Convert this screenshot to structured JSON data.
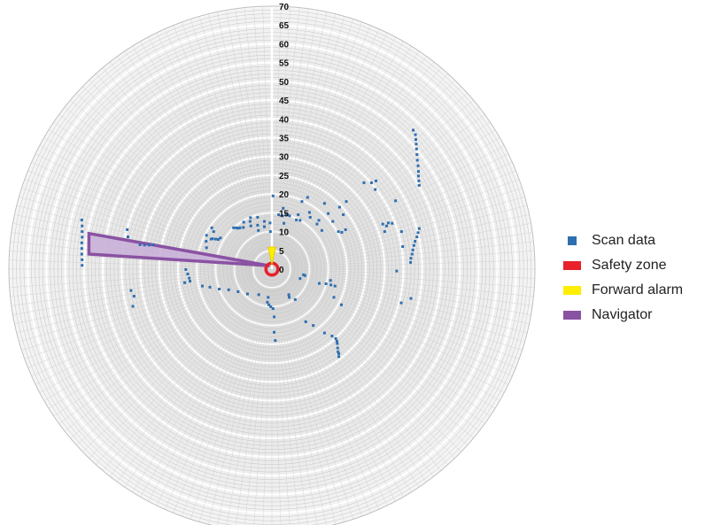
{
  "chart_data": {
    "type": "scatter",
    "coordinate_system": "polar",
    "title": "",
    "radial_ticks": [
      "0",
      "5",
      "10",
      "15",
      "20",
      "25",
      "30",
      "35",
      "40",
      "45",
      "50",
      "55",
      "60",
      "65",
      "70"
    ],
    "radial_range": [
      0,
      70
    ],
    "grid": true,
    "legend_position": "right",
    "series": [
      {
        "name": "Scan data",
        "kind": "points",
        "color": "#2f6fb0",
        "points": [
          [
            -50.6,
            13.1
          ],
          [
            -50.5,
            11.5
          ],
          [
            -50.5,
            10.0
          ],
          [
            -50.5,
            8.5
          ],
          [
            -50.6,
            7.0
          ],
          [
            -50.6,
            5.5
          ],
          [
            -50.6,
            4.0
          ],
          [
            -50.5,
            2.5
          ],
          [
            -50.5,
            1.0
          ],
          [
            -38.5,
            10.5
          ],
          [
            -38.3,
            8.6
          ],
          [
            -35.1,
            6.5
          ],
          [
            -33.9,
            6.4
          ],
          [
            -32.7,
            6.4
          ],
          [
            -31.6,
            6.5
          ],
          [
            -37.5,
            -5.7
          ],
          [
            -36.7,
            -7.2
          ],
          [
            -37.0,
            -9.9
          ],
          [
            -22.9,
            -0.1
          ],
          [
            -22.4,
            -1.3
          ],
          [
            -22.0,
            -2.4
          ],
          [
            -21.8,
            -3.2
          ],
          [
            -23.2,
            -3.6
          ],
          [
            -17.4,
            5.7
          ],
          [
            -17.5,
            7.4
          ],
          [
            -17.4,
            9.0
          ],
          [
            -16.2,
            8.0
          ],
          [
            -15.8,
            8.1
          ],
          [
            -15.0,
            8.0
          ],
          [
            -14.3,
            7.9
          ],
          [
            -13.7,
            8.3
          ],
          [
            -15.5,
            10.0
          ],
          [
            -16.0,
            11.0
          ],
          [
            -10.2,
            11.0
          ],
          [
            -9.5,
            11.0
          ],
          [
            -9.0,
            10.9
          ],
          [
            -8.5,
            11.0
          ],
          [
            -7.5,
            12.5
          ],
          [
            -7.6,
            11.1
          ],
          [
            -5.7,
            13.7
          ],
          [
            -5.8,
            12.7
          ],
          [
            -5.6,
            11.5
          ],
          [
            -3.8,
            13.8
          ],
          [
            -3.8,
            11.7
          ],
          [
            -3.6,
            10.3
          ],
          [
            -2.0,
            12.7
          ],
          [
            -2.0,
            11.3
          ],
          [
            -0.5,
            12.3
          ],
          [
            -0.4,
            10.0
          ],
          [
            0.3,
            19.5
          ],
          [
            1.8,
            14.5
          ],
          [
            2.8,
            14.2
          ],
          [
            3.8,
            14.5
          ],
          [
            4.7,
            14.2
          ],
          [
            3.0,
            16.2
          ],
          [
            3.2,
            12.2
          ],
          [
            6.5,
            13.1
          ],
          [
            7.0,
            14.5
          ],
          [
            7.5,
            13.0
          ],
          [
            8.0,
            18.0
          ],
          [
            9.5,
            19.1
          ],
          [
            10.0,
            15.1
          ],
          [
            10.2,
            13.8
          ],
          [
            12.0,
            12.0
          ],
          [
            12.5,
            13.0
          ],
          [
            14.0,
            17.5
          ],
          [
            15.0,
            14.8
          ],
          [
            16.2,
            12.7
          ],
          [
            13.3,
            10.3
          ],
          [
            18.0,
            16.5
          ],
          [
            19.0,
            14.5
          ],
          [
            19.8,
            18.0
          ],
          [
            17.7,
            10.0
          ],
          [
            18.6,
            9.8
          ],
          [
            19.6,
            10.5
          ],
          [
            -18.5,
            -4.5
          ],
          [
            -16.5,
            -4.8
          ],
          [
            -14.0,
            -5.3
          ],
          [
            -11.5,
            -5.5
          ],
          [
            -9.0,
            -6.0
          ],
          [
            -6.5,
            -6.6
          ],
          [
            -3.5,
            -6.8
          ],
          [
            -1.0,
            -7.5
          ],
          [
            4.5,
            -6.8
          ],
          [
            4.6,
            -7.5
          ],
          [
            6.2,
            -8.1
          ],
          [
            -1.2,
            -8.8
          ],
          [
            -0.8,
            -9.5
          ],
          [
            -0.3,
            -10.0
          ],
          [
            0.3,
            -10.5
          ],
          [
            0.6,
            -12.7
          ],
          [
            0.6,
            -16.8
          ],
          [
            0.9,
            -19.0
          ],
          [
            8.4,
            -1.5
          ],
          [
            8.8,
            -1.7
          ],
          [
            7.5,
            -2.5
          ],
          [
            12.6,
            -3.8
          ],
          [
            14.4,
            -3.9
          ],
          [
            15.6,
            -3.0
          ],
          [
            15.7,
            -4.2
          ],
          [
            16.8,
            -4.5
          ],
          [
            16.5,
            -7.5
          ],
          [
            18.5,
            -9.5
          ],
          [
            9.0,
            -14.0
          ],
          [
            11.0,
            -15.0
          ],
          [
            14.0,
            -17.0
          ],
          [
            16.0,
            -17.8
          ],
          [
            17.0,
            -18.5
          ],
          [
            17.3,
            -19.2
          ],
          [
            17.4,
            -19.8
          ],
          [
            17.5,
            -21.0
          ],
          [
            17.6,
            -22.0
          ],
          [
            17.8,
            -22.5
          ],
          [
            17.8,
            -23.3
          ],
          [
            24.5,
            23.0
          ],
          [
            26.5,
            23.0
          ],
          [
            27.7,
            23.5
          ],
          [
            27.5,
            21.2
          ],
          [
            29.5,
            12.0
          ],
          [
            30.0,
            10.0
          ],
          [
            30.5,
            11.5
          ],
          [
            31.0,
            12.3
          ],
          [
            32.0,
            12.2
          ],
          [
            34.5,
            10.0
          ],
          [
            32.9,
            18.2
          ],
          [
            34.8,
            6.0
          ],
          [
            33.2,
            -0.5
          ],
          [
            34.4,
            -9.0
          ],
          [
            37.6,
            37.0
          ],
          [
            38.2,
            35.8
          ],
          [
            38.3,
            34.5
          ],
          [
            38.4,
            33.3
          ],
          [
            38.5,
            32.0
          ],
          [
            38.6,
            30.5
          ],
          [
            38.7,
            29.0
          ],
          [
            38.9,
            27.5
          ],
          [
            39.0,
            26.0
          ],
          [
            39.0,
            24.8
          ],
          [
            39.1,
            23.5
          ],
          [
            39.2,
            22.3
          ],
          [
            39.2,
            10.8
          ],
          [
            38.9,
            9.7
          ],
          [
            38.6,
            8.6
          ],
          [
            38.1,
            7.4
          ],
          [
            37.8,
            6.3
          ],
          [
            37.5,
            5.1
          ],
          [
            37.3,
            4.0
          ],
          [
            37.0,
            2.9
          ],
          [
            36.9,
            1.8
          ],
          [
            37.0,
            -7.8
          ]
        ]
      },
      {
        "name": "Safety zone",
        "kind": "circle",
        "color": "#e8212b",
        "center": [
          0.0,
          0.0
        ],
        "radius": 1.6
      },
      {
        "name": "Forward alarm",
        "kind": "wedge",
        "color": "#ffee00",
        "polygon": [
          [
            -1.0,
            5.9
          ],
          [
            1.0,
            5.9
          ],
          [
            0.0,
            1.1
          ]
        ]
      },
      {
        "name": "Navigator",
        "kind": "wedge",
        "color": "#8a52a3",
        "fill": "#c9b1d9",
        "polygon": [
          [
            -0.6,
            0.9
          ],
          [
            -48.7,
            9.5
          ],
          [
            -48.7,
            4.0
          ]
        ]
      }
    ]
  },
  "legend": {
    "items": [
      {
        "label": "Scan data",
        "color": "#2f6fb0",
        "shape": "square"
      },
      {
        "label": "Safety zone",
        "color": "#e8212b",
        "shape": "bar"
      },
      {
        "label": "Forward alarm",
        "color": "#ffee00",
        "shape": "bar"
      },
      {
        "label": "Navigator",
        "color": "#8a52a3",
        "shape": "bar"
      }
    ]
  }
}
